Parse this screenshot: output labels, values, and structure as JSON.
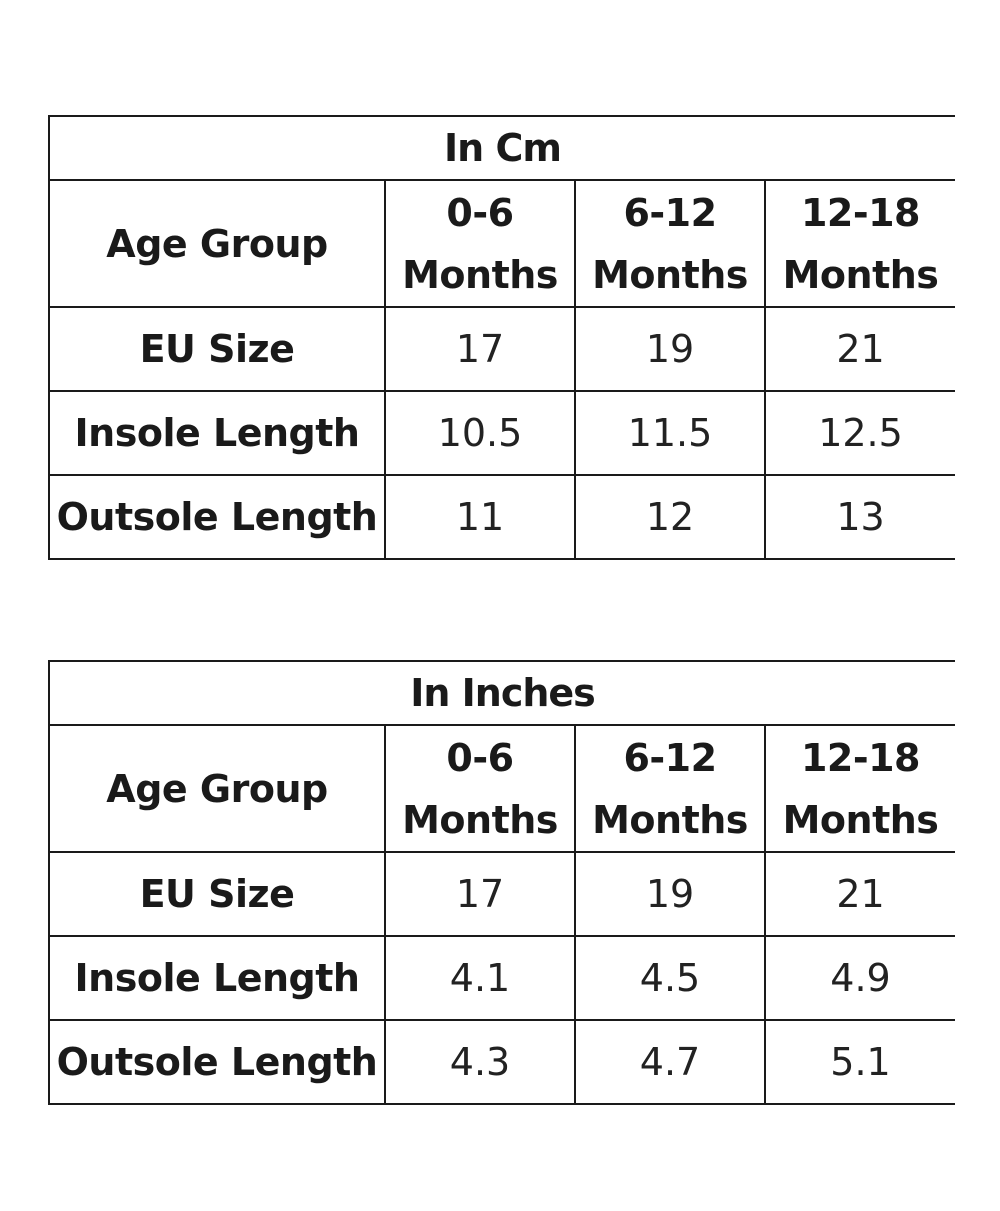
{
  "tables": [
    {
      "title": "In Cm",
      "header_label": "Age Group",
      "columns": [
        {
          "line1": "0-6",
          "line2": "Months"
        },
        {
          "line1": "6-12",
          "line2": "Months"
        },
        {
          "line1": "12-18",
          "line2": "Months"
        }
      ],
      "rows": [
        {
          "label": "EU Size",
          "values": [
            "17",
            "19",
            "21"
          ]
        },
        {
          "label": "Insole Length",
          "values": [
            "10.5",
            "11.5",
            "12.5"
          ]
        },
        {
          "label": "Outsole Length",
          "values": [
            "11",
            "12",
            "13"
          ]
        }
      ]
    },
    {
      "title": "In Inches",
      "header_label": "Age Group",
      "columns": [
        {
          "line1": "0-6",
          "line2": "Months"
        },
        {
          "line1": "6-12",
          "line2": "Months"
        },
        {
          "line1": "12-18",
          "line2": "Months"
        }
      ],
      "rows": [
        {
          "label": "EU Size",
          "values": [
            "17",
            "19",
            "21"
          ]
        },
        {
          "label": "Insole Length",
          "values": [
            "4.1",
            "4.5",
            "4.9"
          ]
        },
        {
          "label": "Outsole Length",
          "values": [
            "4.3",
            "4.7",
            "5.1"
          ]
        }
      ]
    }
  ]
}
